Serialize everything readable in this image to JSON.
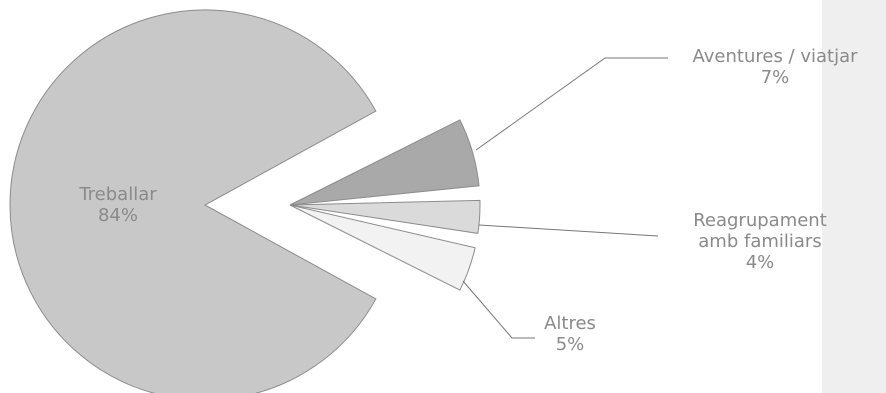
{
  "chart_data": {
    "type": "pie",
    "exploded": true,
    "slices": [
      {
        "label_lines": [
          "Treballar",
          "84%"
        ],
        "value": 84,
        "color": "#c8c8c8"
      },
      {
        "label_lines": [
          "Aventures / viatjar",
          "7%"
        ],
        "value": 7,
        "color": "#a9a9a9"
      },
      {
        "label_lines": [
          "Reagrupament",
          "amb familiars",
          "4%"
        ],
        "value": 4,
        "color": "#dadada"
      },
      {
        "label_lines": [
          "Altres",
          "5%"
        ],
        "value": 5,
        "color": "#f2f2f2"
      }
    ],
    "stroke_color": "#8c8c8c",
    "leader_color": "#777777",
    "side_panel_color": "#efefef"
  }
}
